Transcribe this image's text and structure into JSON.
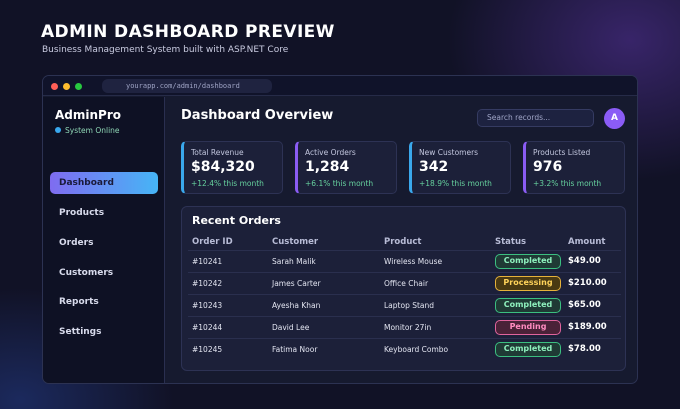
{
  "hero": {
    "title": "ADMIN DASHBOARD PREVIEW",
    "subtitle": "Business Management System built with ASP.NET Core"
  },
  "browser": {
    "url": "yourapp.com/admin/dashboard"
  },
  "sidebar": {
    "brand": "AdminPro",
    "status": "System Online",
    "items": [
      {
        "label": "Dashboard",
        "active": true
      },
      {
        "label": "Products",
        "active": false
      },
      {
        "label": "Orders",
        "active": false
      },
      {
        "label": "Customers",
        "active": false
      },
      {
        "label": "Reports",
        "active": false
      },
      {
        "label": "Settings",
        "active": false
      }
    ]
  },
  "header": {
    "title": "Dashboard Overview",
    "search_placeholder": "Search records...",
    "avatar_initial": "A"
  },
  "stats": [
    {
      "label": "Total Revenue",
      "value": "$84,320",
      "change": "+12.4% this month"
    },
    {
      "label": "Active Orders",
      "value": "1,284",
      "change": "+6.1% this month"
    },
    {
      "label": "New Customers",
      "value": "342",
      "change": "+18.9% this month"
    },
    {
      "label": "Products Listed",
      "value": "976",
      "change": "+3.2% this month"
    }
  ],
  "orders": {
    "title": "Recent Orders",
    "columns": [
      "Order ID",
      "Customer",
      "Product",
      "Status",
      "Amount"
    ],
    "rows": [
      {
        "id": "#10241",
        "customer": "Sarah Malik",
        "product": "Wireless Mouse",
        "status": "Completed",
        "amount": "$49.00"
      },
      {
        "id": "#10242",
        "customer": "James Carter",
        "product": "Office Chair",
        "status": "Processing",
        "amount": "$210.00"
      },
      {
        "id": "#10243",
        "customer": "Ayesha Khan",
        "product": "Laptop Stand",
        "status": "Completed",
        "amount": "$65.00"
      },
      {
        "id": "#10244",
        "customer": "David Lee",
        "product": "Monitor 27in",
        "status": "Pending",
        "amount": "$189.00"
      },
      {
        "id": "#10245",
        "customer": "Fatima Noor",
        "product": "Keyboard Combo",
        "status": "Completed",
        "amount": "$78.00"
      }
    ]
  },
  "colors": {
    "accent_blue": "#3aa8ec",
    "accent_purple": "#8a5cf3",
    "positive": "#66d19e",
    "status_completed": "#3bbf80",
    "status_processing": "#e6b23a",
    "status_pending": "#e0649d"
  }
}
